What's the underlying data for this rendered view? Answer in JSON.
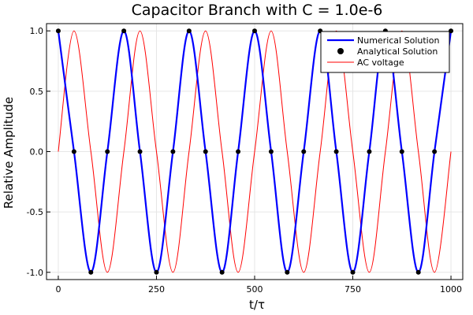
{
  "chart_data": {
    "type": "line",
    "title": "Capacitor Branch with C = 1.0e-6",
    "xlabel": "t/τ",
    "ylabel": "Relative Amplitude",
    "xlim": [
      0,
      1000
    ],
    "ylim": [
      -1.0,
      1.0
    ],
    "x_ticks": [
      0,
      250,
      500,
      750,
      1000
    ],
    "x_tick_labels": [
      "0",
      "250",
      "500",
      "750",
      "1000"
    ],
    "y_ticks": [
      -1.0,
      -0.5,
      0.0,
      0.5,
      1.0
    ],
    "y_tick_labels": [
      "-1.0",
      "-0.5",
      "0.0",
      "0.5",
      "1.0"
    ],
    "grid": true,
    "legend_position": "top-right",
    "x": [
      0,
      40,
      83,
      125,
      167,
      208,
      250,
      292,
      333,
      375,
      417,
      458,
      500,
      542,
      583,
      625,
      667,
      708,
      750,
      792,
      833,
      875,
      917,
      958,
      1000
    ],
    "series": [
      {
        "name": "Numerical Solution",
        "style": "line",
        "color": "#0000ff",
        "values": [
          1.0,
          0.0,
          -1.0,
          0.0,
          1.0,
          0.0,
          -1.0,
          0.0,
          1.0,
          0.0,
          -1.0,
          0.0,
          1.0,
          0.0,
          -1.0,
          0.0,
          1.0,
          0.0,
          -1.0,
          0.0,
          1.0,
          0.0,
          -1.0,
          0.0,
          1.0
        ]
      },
      {
        "name": "Analytical Solution",
        "style": "markers",
        "color": "#000000",
        "values": [
          1.0,
          0.0,
          -1.0,
          0.0,
          1.0,
          0.0,
          -1.0,
          0.0,
          1.0,
          0.0,
          -1.0,
          0.0,
          1.0,
          0.0,
          -1.0,
          0.0,
          1.0,
          0.0,
          -1.0,
          0.0,
          1.0,
          0.0,
          -1.0,
          0.0,
          1.0
        ]
      },
      {
        "name": "AC voltage",
        "style": "line",
        "color": "#ff0000",
        "values": [
          0.0,
          1.0,
          0.0,
          -1.0,
          0.0,
          1.0,
          0.0,
          -1.0,
          0.0,
          1.0,
          0.0,
          -1.0,
          0.0,
          1.0,
          0.0,
          -1.0,
          0.0,
          1.0,
          0.0,
          -1.0,
          0.0,
          1.0,
          0.0,
          -1.0,
          0.0
        ]
      }
    ]
  }
}
